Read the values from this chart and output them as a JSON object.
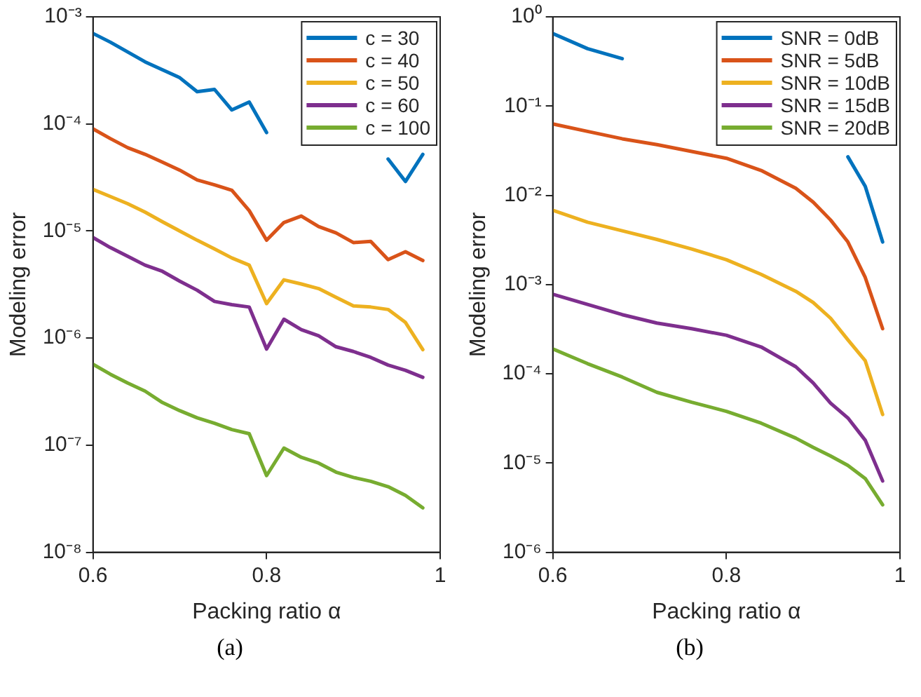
{
  "chart_data": [
    {
      "type": "line",
      "xlabel": "Packing ratio α",
      "ylabel": "Modeling error",
      "log": "y",
      "grid": false,
      "legend": "top right",
      "xlim": [
        0.6,
        1
      ],
      "xticks": [
        0.6,
        0.8,
        1
      ],
      "ylim": [
        1e-08,
        0.001
      ],
      "yticks": [
        {
          "value": 1e-08,
          "label": "10⁻⁸"
        },
        {
          "value": 1e-07,
          "label": "10⁻⁷"
        },
        {
          "value": 1e-06,
          "label": "10⁻⁶"
        },
        {
          "value": 1e-05,
          "label": "10⁻⁵"
        },
        {
          "value": 0.0001,
          "label": "10⁻⁴"
        },
        {
          "value": 0.001,
          "label": "10⁻³"
        }
      ],
      "annotations": [
        "(a)"
      ],
      "x": [
        0.6,
        0.62,
        0.64,
        0.66,
        0.68,
        0.7,
        0.72,
        0.74,
        0.76,
        0.78,
        0.8,
        0.82,
        0.84,
        0.86,
        0.88,
        0.9,
        0.92,
        0.94,
        0.96,
        0.98
      ],
      "series": [
        {
          "name": "c = 30",
          "color": "#0072bd",
          "values": [
            0.0007,
            0.00058,
            0.00047,
            0.00038,
            0.00032,
            0.00027,
            0.0002,
            0.00021,
            0.000135,
            0.00016,
            8.3e-05,
            null,
            null,
            null,
            null,
            null,
            null,
            4.7e-05,
            2.9e-05,
            5.2e-05
          ]
        },
        {
          "name": "c = 40",
          "color": "#d95319",
          "values": [
            9e-05,
            7.3e-05,
            6e-05,
            5.2e-05,
            4.4e-05,
            3.7e-05,
            3e-05,
            2.7e-05,
            2.4e-05,
            1.55e-05,
            8.2e-06,
            1.2e-05,
            1.38e-05,
            1.1e-05,
            9.6e-06,
            7.8e-06,
            8e-06,
            5.4e-06,
            6.4e-06,
            5.3e-06
          ]
        },
        {
          "name": "c = 50",
          "color": "#edb120",
          "values": [
            2.45e-05,
            2.1e-05,
            1.8e-05,
            1.5e-05,
            1.22e-05,
            1e-05,
            8.2e-06,
            6.8e-06,
            5.6e-06,
            4.8e-06,
            2.1e-06,
            3.5e-06,
            3.2e-06,
            2.9e-06,
            2.4e-06,
            2e-06,
            1.95e-06,
            1.85e-06,
            1.4e-06,
            7.8e-07
          ]
        },
        {
          "name": "c = 60",
          "color": "#7e2f8e",
          "values": [
            8.7e-06,
            7e-06,
            5.8e-06,
            4.8e-06,
            4.2e-06,
            3.4e-06,
            2.8e-06,
            2.2e-06,
            2.05e-06,
            1.95e-06,
            7.9e-07,
            1.5e-06,
            1.2e-06,
            1.05e-06,
            8.3e-07,
            7.5e-07,
            6.6e-07,
            5.6e-07,
            5e-07,
            4.3e-07
          ]
        },
        {
          "name": "c = 100",
          "color": "#77ac30",
          "values": [
            5.7e-07,
            4.6e-07,
            3.8e-07,
            3.2e-07,
            2.5e-07,
            2.1e-07,
            1.8e-07,
            1.6e-07,
            1.4e-07,
            1.28e-07,
            5.2e-08,
            9.4e-08,
            7.7e-08,
            6.8e-08,
            5.6e-08,
            5e-08,
            4.6e-08,
            4.1e-08,
            3.4e-08,
            2.6e-08
          ]
        }
      ]
    },
    {
      "type": "line",
      "xlabel": "Packing ratio α",
      "ylabel": "Modeling error",
      "log": "y",
      "grid": false,
      "legend": "top right",
      "xlim": [
        0.6,
        1
      ],
      "xticks": [
        0.6,
        0.8,
        1
      ],
      "ylim": [
        1e-06,
        1
      ],
      "yticks": [
        {
          "value": 1e-06,
          "label": "10⁻⁶"
        },
        {
          "value": 1e-05,
          "label": "10⁻⁵"
        },
        {
          "value": 0.0001,
          "label": "10⁻⁴"
        },
        {
          "value": 0.001,
          "label": "10⁻³"
        },
        {
          "value": 0.01,
          "label": "10⁻²"
        },
        {
          "value": 0.1,
          "label": "10⁻¹"
        },
        {
          "value": 1,
          "label": "10⁰"
        }
      ],
      "annotations": [
        "(b)"
      ],
      "x": [
        0.6,
        0.64,
        0.68,
        0.72,
        0.76,
        0.8,
        0.84,
        0.88,
        0.9,
        0.92,
        0.94,
        0.96,
        0.98
      ],
      "series": [
        {
          "name": "SNR = 0dB",
          "color": "#0072bd",
          "values": [
            0.65,
            0.44,
            0.34,
            null,
            null,
            null,
            null,
            null,
            null,
            null,
            0.027,
            0.0126,
            0.003
          ]
        },
        {
          "name": "SNR = 5dB",
          "color": "#d95319",
          "values": [
            0.063,
            0.052,
            0.043,
            0.037,
            0.031,
            0.026,
            0.019,
            0.012,
            0.0084,
            0.0053,
            0.003,
            0.0012,
            0.00032
          ]
        },
        {
          "name": "SNR = 10dB",
          "color": "#edb120",
          "values": [
            0.0068,
            0.005,
            0.004,
            0.0032,
            0.0025,
            0.0019,
            0.0013,
            0.00084,
            0.00063,
            0.00042,
            0.00024,
            0.00014,
            3.5e-05
          ]
        },
        {
          "name": "SNR = 15dB",
          "color": "#7e2f8e",
          "values": [
            0.00078,
            0.0006,
            0.00046,
            0.00037,
            0.00032,
            0.00027,
            0.0002,
            0.00012,
            7.9e-05,
            4.7e-05,
            3.2e-05,
            1.8e-05,
            6.3e-06
          ]
        },
        {
          "name": "SNR = 20dB",
          "color": "#77ac30",
          "values": [
            0.00019,
            0.00013,
            9.2e-05,
            6.2e-05,
            4.8e-05,
            3.8e-05,
            2.8e-05,
            1.9e-05,
            1.5e-05,
            1.2e-05,
            9.4e-06,
            6.7e-06,
            3.4e-06
          ]
        }
      ]
    }
  ]
}
